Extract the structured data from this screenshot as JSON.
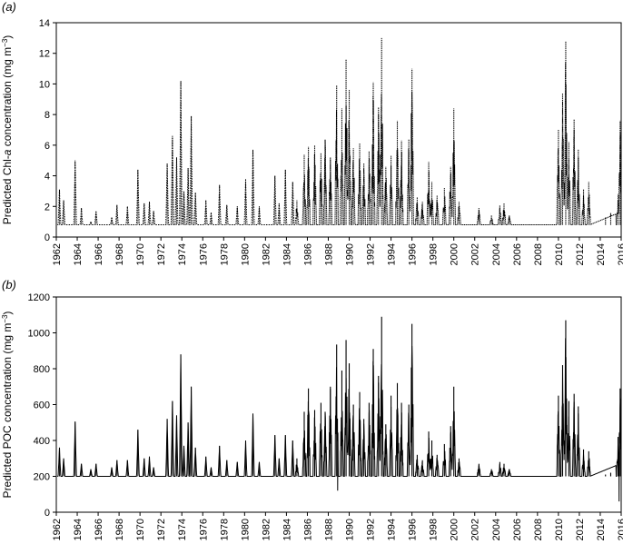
{
  "chart_data": [
    {
      "type": "line",
      "panel_label": "(a)",
      "ylabel": "Predicted Chl-a concentration (mg m−3)",
      "ylabel_parts": {
        "pre": "Predicted Chl-",
        "italic": "a",
        "post": " concentration (mg m",
        "sup": "−3",
        "end": ")"
      },
      "xlim": [
        1962,
        2016
      ],
      "ylim": [
        0,
        14
      ],
      "yticks": [
        0,
        2,
        4,
        6,
        8,
        10,
        12,
        14
      ],
      "xticks": [
        1962,
        1964,
        1966,
        1968,
        1970,
        1972,
        1974,
        1976,
        1978,
        1980,
        1982,
        1984,
        1986,
        1988,
        1990,
        1992,
        1994,
        1996,
        1998,
        2000,
        2002,
        2004,
        2006,
        2008,
        2010,
        2012,
        2014,
        2016
      ],
      "line_style": "dotted-early",
      "baseline": 0.8,
      "series": [
        {
          "peaks": [
            [
              1962.3,
              3.1
            ],
            [
              1962.7,
              2.4
            ],
            [
              1963.8,
              5.0
            ],
            [
              1964.4,
              1.9
            ],
            [
              1965.3,
              1.0
            ],
            [
              1965.8,
              1.7
            ],
            [
              1967.3,
              1.3
            ],
            [
              1967.8,
              2.1
            ],
            [
              1968.8,
              2.0
            ],
            [
              1969.8,
              4.4
            ],
            [
              1970.4,
              2.2
            ],
            [
              1970.9,
              2.3
            ],
            [
              1971.3,
              1.7
            ],
            [
              1972.6,
              4.8
            ],
            [
              1973.1,
              6.6
            ],
            [
              1973.5,
              5.2
            ],
            [
              1973.9,
              10.2
            ],
            [
              1974.2,
              3.0
            ],
            [
              1974.6,
              4.5
            ],
            [
              1974.9,
              7.9
            ],
            [
              1975.3,
              2.9
            ],
            [
              1976.3,
              2.4
            ],
            [
              1976.8,
              1.6
            ],
            [
              1977.6,
              3.4
            ],
            [
              1978.3,
              2.1
            ],
            [
              1979.3,
              2.0
            ],
            [
              1980.1,
              3.8
            ],
            [
              1980.8,
              5.7
            ],
            [
              1981.4,
              2.0
            ],
            [
              1982.9,
              4.0
            ],
            [
              1983.3,
              2.2
            ],
            [
              1983.9,
              4.4
            ],
            [
              1984.6,
              3.6
            ],
            [
              1985.0,
              2.4
            ],
            [
              1985.7,
              5.4
            ],
            [
              1986.1,
              5.9
            ],
            [
              1986.7,
              6.0
            ],
            [
              1987.3,
              5.5
            ],
            [
              1987.7,
              6.4
            ],
            [
              1988.2,
              5.2
            ],
            [
              1988.8,
              9.9
            ],
            [
              1989.3,
              8.4
            ],
            [
              1989.7,
              11.6
            ],
            [
              1990.0,
              9.6
            ],
            [
              1990.4,
              5.8
            ],
            [
              1991.0,
              6.1
            ],
            [
              1991.4,
              4.8
            ],
            [
              1991.9,
              5.6
            ],
            [
              1992.3,
              10.1
            ],
            [
              1992.8,
              8.5
            ],
            [
              1993.1,
              13.0
            ],
            [
              1993.5,
              4.6
            ],
            [
              1994.0,
              5.3
            ],
            [
              1994.6,
              7.6
            ],
            [
              1995.0,
              6.3
            ],
            [
              1995.7,
              6.4
            ],
            [
              1996.0,
              11.0
            ],
            [
              1996.5,
              2.6
            ],
            [
              1997.0,
              2.3
            ],
            [
              1997.6,
              4.9
            ],
            [
              1997.9,
              3.6
            ],
            [
              1998.4,
              2.7
            ],
            [
              1999.1,
              3.2
            ],
            [
              1999.7,
              4.6
            ],
            [
              2000.0,
              8.4
            ],
            [
              2000.5,
              2.3
            ],
            [
              2002.4,
              1.9
            ],
            [
              2003.6,
              1.4
            ],
            [
              2004.4,
              2.1
            ],
            [
              2004.8,
              2.2
            ],
            [
              2005.3,
              1.4
            ],
            [
              2010.0,
              7.0
            ],
            [
              2010.4,
              9.4
            ],
            [
              2010.7,
              12.8
            ],
            [
              2011.0,
              6.2
            ],
            [
              2011.5,
              7.7
            ],
            [
              2011.9,
              5.7
            ],
            [
              2012.4,
              3.1
            ],
            [
              2012.9,
              3.6
            ],
            [
              2014.5,
              1.3
            ],
            [
              2015.0,
              1.6
            ],
            [
              2015.7,
              2.8
            ],
            [
              2015.9,
              7.6
            ]
          ]
        }
      ]
    },
    {
      "type": "line",
      "panel_label": "(b)",
      "ylabel": "Predicted POC concentration (mg m−3)",
      "ylabel_parts": {
        "pre": "Predicted POC",
        "italic": "",
        "post": " concentration (mg m",
        "sup": "−3",
        "end": ")"
      },
      "xlim": [
        1962,
        2016
      ],
      "ylim": [
        0,
        1200
      ],
      "yticks": [
        0,
        200,
        400,
        600,
        800,
        1000,
        1200
      ],
      "xticks": [
        1962,
        1964,
        1966,
        1968,
        1970,
        1972,
        1974,
        1976,
        1978,
        1980,
        1982,
        1984,
        1986,
        1988,
        1990,
        1992,
        1994,
        1996,
        1998,
        2000,
        2002,
        2004,
        2006,
        2008,
        2010,
        2012,
        2014,
        2016
      ],
      "line_style": "solid",
      "baseline": 200,
      "series": [
        {
          "peaks": [
            [
              1962.3,
              360
            ],
            [
              1962.7,
              300
            ],
            [
              1963.8,
              505
            ],
            [
              1964.4,
              270
            ],
            [
              1965.3,
              240
            ],
            [
              1965.8,
              270
            ],
            [
              1967.3,
              250
            ],
            [
              1967.8,
              290
            ],
            [
              1968.8,
              290
            ],
            [
              1969.8,
              460
            ],
            [
              1970.4,
              300
            ],
            [
              1970.9,
              310
            ],
            [
              1971.3,
              250
            ],
            [
              1972.6,
              520
            ],
            [
              1973.1,
              620
            ],
            [
              1973.5,
              540
            ],
            [
              1973.9,
              880
            ],
            [
              1974.2,
              370
            ],
            [
              1974.6,
              500
            ],
            [
              1974.9,
              700
            ],
            [
              1975.3,
              360
            ],
            [
              1976.3,
              310
            ],
            [
              1976.8,
              250
            ],
            [
              1977.6,
              370
            ],
            [
              1978.3,
              290
            ],
            [
              1979.3,
              280
            ],
            [
              1980.1,
              400
            ],
            [
              1980.8,
              550
            ],
            [
              1981.4,
              280
            ],
            [
              1982.9,
              430
            ],
            [
              1983.3,
              300
            ],
            [
              1983.9,
              430
            ],
            [
              1984.6,
              400
            ],
            [
              1985.0,
              300
            ],
            [
              1985.7,
              560
            ],
            [
              1986.1,
              690
            ],
            [
              1986.7,
              570
            ],
            [
              1987.3,
              610
            ],
            [
              1987.7,
              560
            ],
            [
              1988.2,
              700
            ],
            [
              1988.8,
              935
            ],
            [
              1989.3,
              790
            ],
            [
              1989.7,
              960
            ],
            [
              1990.0,
              830
            ],
            [
              1990.4,
              600
            ],
            [
              1991.0,
              670
            ],
            [
              1991.4,
              520
            ],
            [
              1991.9,
              610
            ],
            [
              1992.3,
              910
            ],
            [
              1992.8,
              760
            ],
            [
              1993.1,
              1090
            ],
            [
              1993.5,
              490
            ],
            [
              1994.0,
              650
            ],
            [
              1994.6,
              720
            ],
            [
              1995.0,
              610
            ],
            [
              1995.7,
              600
            ],
            [
              1996.0,
              1050
            ],
            [
              1996.5,
              320
            ],
            [
              1997.0,
              290
            ],
            [
              1997.6,
              450
            ],
            [
              1997.9,
              400
            ],
            [
              1998.4,
              320
            ],
            [
              1999.1,
              380
            ],
            [
              1999.7,
              480
            ],
            [
              2000.0,
              700
            ],
            [
              2000.5,
              300
            ],
            [
              2002.4,
              270
            ],
            [
              2003.6,
              240
            ],
            [
              2004.4,
              280
            ],
            [
              2004.8,
              270
            ],
            [
              2005.3,
              240
            ],
            [
              2010.0,
              650
            ],
            [
              2010.4,
              820
            ],
            [
              2010.7,
              1070
            ],
            [
              2011.0,
              620
            ],
            [
              2011.5,
              660
            ],
            [
              2011.9,
              590
            ],
            [
              2012.4,
              350
            ],
            [
              2012.9,
              340
            ],
            [
              2014.5,
              210
            ],
            [
              2015.0,
              220
            ],
            [
              2015.7,
              420
            ],
            [
              2015.9,
              690
            ]
          ],
          "dips": [
            [
              1988.9,
              120
            ],
            [
              2015.8,
              60
            ]
          ]
        }
      ]
    }
  ]
}
